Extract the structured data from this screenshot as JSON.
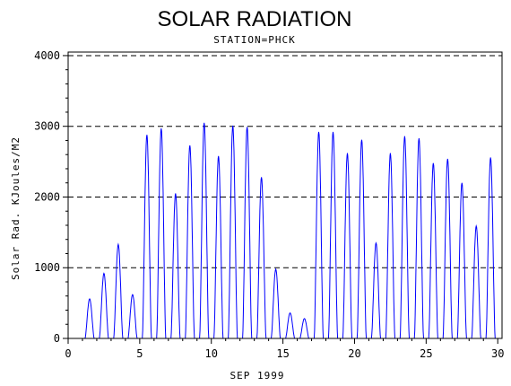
{
  "chart_data": {
    "type": "line",
    "title": "SOLAR RADIATION",
    "subtitle": "STATION=PHCK",
    "xlabel": "SEP 1999",
    "ylabel": "Solar Rad. KJoules/M2",
    "xlim": [
      0,
      30.3
    ],
    "ylim": [
      0,
      4050
    ],
    "x_ticks": [
      0,
      5,
      10,
      15,
      20,
      25,
      30
    ],
    "y_ticks": [
      0,
      1000,
      2000,
      3000,
      4000
    ],
    "grid": "horizontal dashed",
    "series": [
      {
        "color": "#0000ff",
        "daily_peaks": [
          {
            "day": 1,
            "peak": 560
          },
          {
            "day": 2,
            "peak": 920
          },
          {
            "day": 3,
            "peak": 1330
          },
          {
            "day": 4,
            "peak": 620
          },
          {
            "day": 5,
            "peak": 2880
          },
          {
            "day": 6,
            "peak": 2970
          },
          {
            "day": 7,
            "peak": 2050
          },
          {
            "day": 8,
            "peak": 2730
          },
          {
            "day": 9,
            "peak": 3050
          },
          {
            "day": 10,
            "peak": 2580
          },
          {
            "day": 11,
            "peak": 3010
          },
          {
            "day": 12,
            "peak": 2990
          },
          {
            "day": 13,
            "peak": 2280
          },
          {
            "day": 14,
            "peak": 980
          },
          {
            "day": 15,
            "peak": 360
          },
          {
            "day": 16,
            "peak": 280
          },
          {
            "day": 17,
            "peak": 2920
          },
          {
            "day": 18,
            "peak": 2920
          },
          {
            "day": 19,
            "peak": 2620
          },
          {
            "day": 20,
            "peak": 2810
          },
          {
            "day": 21,
            "peak": 1350
          },
          {
            "day": 22,
            "peak": 2620
          },
          {
            "day": 23,
            "peak": 2860
          },
          {
            "day": 24,
            "peak": 2830
          },
          {
            "day": 25,
            "peak": 2480
          },
          {
            "day": 26,
            "peak": 2540
          },
          {
            "day": 27,
            "peak": 2200
          },
          {
            "day": 28,
            "peak": 1590
          },
          {
            "day": 29,
            "peak": 2560
          }
        ]
      }
    ]
  }
}
